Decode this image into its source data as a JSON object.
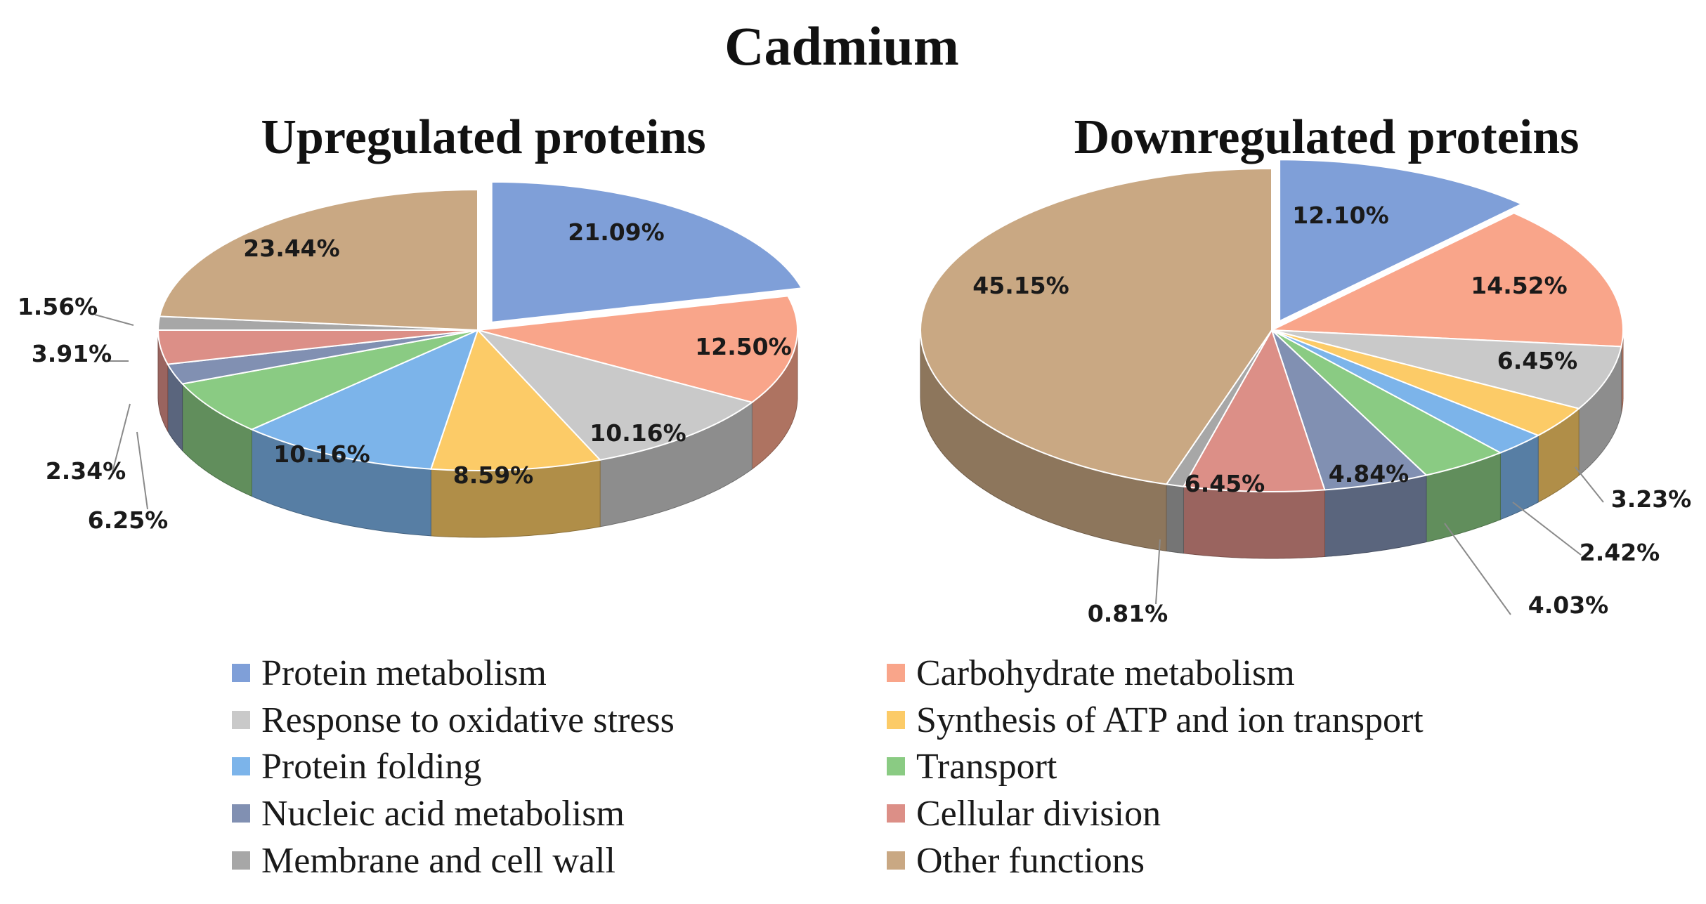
{
  "figure_title": "Cadmium",
  "colors": {
    "Protein metabolism": "#7f9fd8",
    "Carbohydrate metabolism": "#f9a58a",
    "Response to oxidative stress": "#c9c9c9",
    "Synthesis of ATP and ion transport": "#fccb67",
    "Protein folding": "#7cb4ea",
    "Transport": "#8acb83",
    "Nucleic acid metabolism": "#8190b2",
    "Cellular division": "#dc8f87",
    "Membrane and cell wall": "#a7a7a7",
    "Other functions": "#c9a883"
  },
  "chart_data": [
    {
      "type": "pie",
      "style": "3d-exploded",
      "title": "Upregulated proteins",
      "unit": "%",
      "categories": [
        "Protein metabolism",
        "Carbohydrate metabolism",
        "Response to oxidative stress",
        "Synthesis of ATP and ion transport",
        "Protein folding",
        "Transport",
        "Nucleic acid metabolism",
        "Cellular division",
        "Membrane and cell wall",
        "Other functions"
      ],
      "values": [
        21.09,
        12.5,
        10.16,
        8.59,
        10.16,
        6.25,
        2.34,
        3.91,
        1.56,
        23.44
      ],
      "labels": [
        "21.09%",
        "12.50%",
        "10.16%",
        "8.59%",
        "10.16%",
        "6.25%",
        "2.34%",
        "3.91%",
        "1.56%",
        "23.44%"
      ],
      "exploded": [
        "Protein metabolism"
      ]
    },
    {
      "type": "pie",
      "style": "3d-exploded",
      "title": "Downregulated proteins",
      "unit": "%",
      "categories": [
        "Protein metabolism",
        "Carbohydrate metabolism",
        "Response to oxidative stress",
        "Synthesis of ATP and ion transport",
        "Protein folding",
        "Transport",
        "Nucleic acid metabolism",
        "Cellular division",
        "Membrane and cell wall",
        "Other functions"
      ],
      "values": [
        12.1,
        14.52,
        6.45,
        3.23,
        2.42,
        4.03,
        4.84,
        6.45,
        0.81,
        45.15
      ],
      "labels": [
        "12.10%",
        "14.52%",
        "6.45%",
        "3.23%",
        "2.42%",
        "4.03%",
        "4.84%",
        "6.45%",
        "0.81%",
        "45.15%"
      ],
      "exploded": [
        "Protein metabolism"
      ]
    }
  ],
  "legend": {
    "placement": "bottom",
    "items": [
      "Protein metabolism",
      "Carbohydrate metabolism",
      "Response to oxidative stress",
      "Synthesis of ATP and ion transport",
      "Protein folding",
      "Transport",
      "Nucleic acid metabolism",
      "Cellular division",
      "Membrane and cell wall",
      "Other functions"
    ]
  }
}
